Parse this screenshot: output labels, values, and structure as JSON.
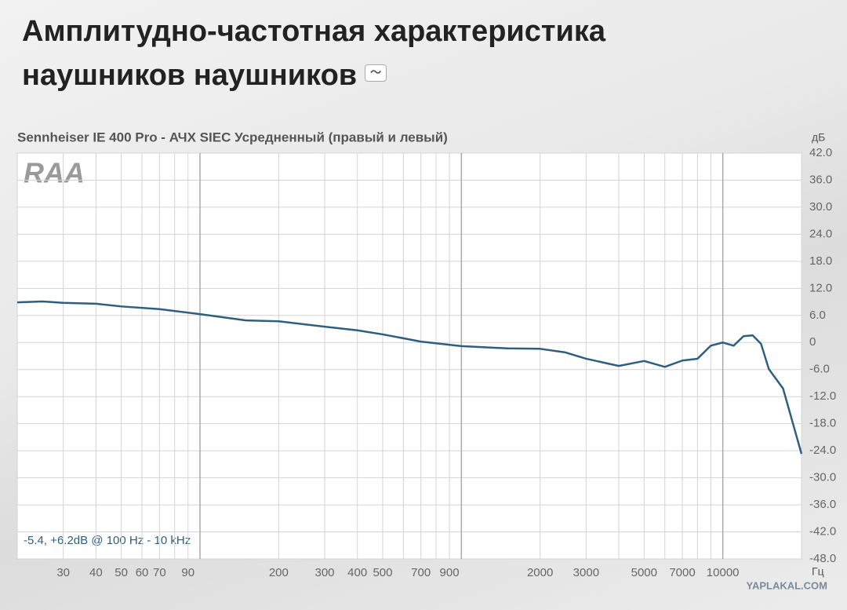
{
  "header": {
    "title": [
      "Амплитудно-частотная характеристика",
      "наушников наушников"
    ]
  },
  "chart_data": {
    "type": "line",
    "title": "Sennheiser IE 400 Pro - АЧХ SIEC Усредненный (правый и левый)",
    "logo": "RAA",
    "annotation": "-5.4, +6.2dB @ 100 Hz - 10 kHz",
    "y_unit": "дБ",
    "x_unit": "Гц",
    "source": "YAPLAKAL.COM",
    "color": "#2f5f7f",
    "x_log": true,
    "grid": true,
    "x": [
      20,
      25,
      30,
      40,
      50,
      70,
      100,
      150,
      200,
      300,
      400,
      500,
      700,
      1000,
      1500,
      2000,
      2500,
      3000,
      4000,
      5000,
      6000,
      7000,
      8000,
      9000,
      10000,
      11000,
      12000,
      13000,
      14000,
      15000,
      17000,
      20000
    ],
    "values": [
      8.9,
      9.1,
      8.8,
      8.6,
      8.0,
      7.4,
      6.3,
      4.9,
      4.7,
      3.5,
      2.7,
      1.8,
      0.2,
      -0.8,
      -1.3,
      -1.4,
      -2.2,
      -3.6,
      -5.2,
      -4.1,
      -5.4,
      -4.0,
      -3.6,
      -0.7,
      0.0,
      -0.7,
      1.4,
      1.6,
      -0.3,
      -5.9,
      -10.2,
      -24.7
    ],
    "xlim": [
      20,
      20000
    ],
    "xticks": [
      30,
      40,
      50,
      60,
      70,
      90,
      200,
      300,
      400,
      500,
      700,
      900,
      2000,
      3000,
      5000,
      7000,
      10000
    ],
    "x_minor_ticks": [
      20,
      80,
      100,
      600,
      800,
      1000,
      4000,
      6000,
      8000,
      9000,
      20000
    ],
    "ylim": [
      -48,
      42
    ],
    "yticks": [
      {
        "value": 42,
        "label": "42.0"
      },
      {
        "value": 36,
        "label": "36.0"
      },
      {
        "value": 30,
        "label": "30.0"
      },
      {
        "value": 24,
        "label": "24.0"
      },
      {
        "value": 18,
        "label": "18.0"
      },
      {
        "value": 12,
        "label": "12.0"
      },
      {
        "value": 6,
        "label": "6.0"
      },
      0,
      {
        "value": -6,
        "label": "-6.0"
      },
      {
        "value": -12,
        "label": "-12.0"
      },
      {
        "value": -18,
        "label": "-18.0"
      },
      {
        "value": -24,
        "label": "-24.0"
      },
      {
        "value": -30,
        "label": "-30.0"
      },
      {
        "value": -36,
        "label": "-36.0"
      },
      {
        "value": -42,
        "label": "-42.0"
      },
      {
        "value": -48,
        "label": "-48.0"
      }
    ]
  }
}
